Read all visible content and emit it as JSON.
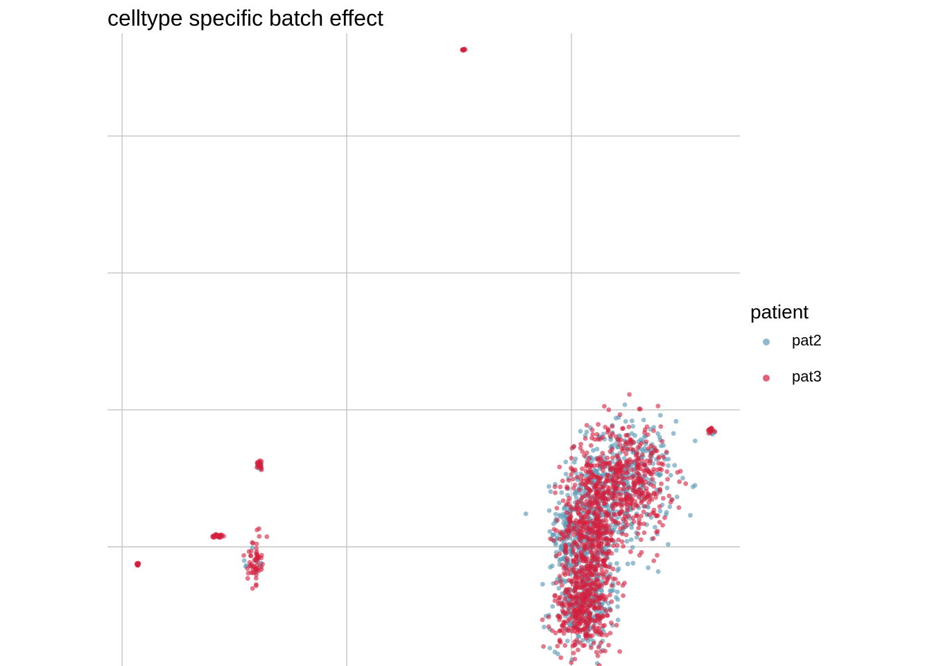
{
  "chart_data": {
    "type": "scatter",
    "title": "celltype specific batch effect",
    "xlabel": "",
    "ylabel": "",
    "xlim": [
      -0.065,
      2.75
    ],
    "ylim": [
      -0.87,
      3.75
    ],
    "grid": true,
    "legend": {
      "title": "patient",
      "position": "right"
    },
    "series": [
      {
        "name": "pat2",
        "color": "#5f9cb8",
        "clusters": [
          {
            "cx": 2.08,
            "cy": 0.1,
            "sx": 0.07,
            "sy": 0.3,
            "n": 380
          },
          {
            "cx": 2.25,
            "cy": 0.48,
            "sx": 0.1,
            "sy": 0.22,
            "n": 320
          },
          {
            "cx": 2.05,
            "cy": -0.43,
            "sx": 0.07,
            "sy": 0.16,
            "n": 200
          },
          {
            "cx": 1.97,
            "cy": 0.08,
            "sx": 0.03,
            "sy": 0.14,
            "n": 60
          },
          {
            "cx": 2.62,
            "cy": 0.84,
            "sx": 0.008,
            "sy": 0.01,
            "n": 6
          },
          {
            "cx": 0.61,
            "cy": 0.59,
            "sx": 0.01,
            "sy": 0.02,
            "n": 6
          },
          {
            "cx": 0.6,
            "cy": -0.12,
            "sx": 0.018,
            "sy": 0.08,
            "n": 10
          }
        ]
      },
      {
        "name": "pat3",
        "color": "#d41f3d",
        "clusters": [
          {
            "cx": 2.08,
            "cy": 0.1,
            "sx": 0.065,
            "sy": 0.3,
            "n": 520
          },
          {
            "cx": 2.25,
            "cy": 0.48,
            "sx": 0.09,
            "sy": 0.22,
            "n": 420
          },
          {
            "cx": 2.05,
            "cy": -0.45,
            "sx": 0.065,
            "sy": 0.16,
            "n": 300
          },
          {
            "cx": 1.52,
            "cy": 3.63,
            "sx": 0.003,
            "sy": 0.004,
            "n": 8
          },
          {
            "cx": 2.62,
            "cy": 0.85,
            "sx": 0.007,
            "sy": 0.01,
            "n": 14
          },
          {
            "cx": 0.61,
            "cy": 0.6,
            "sx": 0.01,
            "sy": 0.02,
            "n": 22
          },
          {
            "cx": 0.43,
            "cy": 0.08,
            "sx": 0.015,
            "sy": 0.008,
            "n": 22
          },
          {
            "cx": 0.59,
            "cy": -0.1,
            "sx": 0.015,
            "sy": 0.08,
            "n": 55
          },
          {
            "cx": 0.07,
            "cy": -0.13,
            "sx": 0.004,
            "sy": 0.006,
            "n": 12
          }
        ]
      }
    ]
  }
}
